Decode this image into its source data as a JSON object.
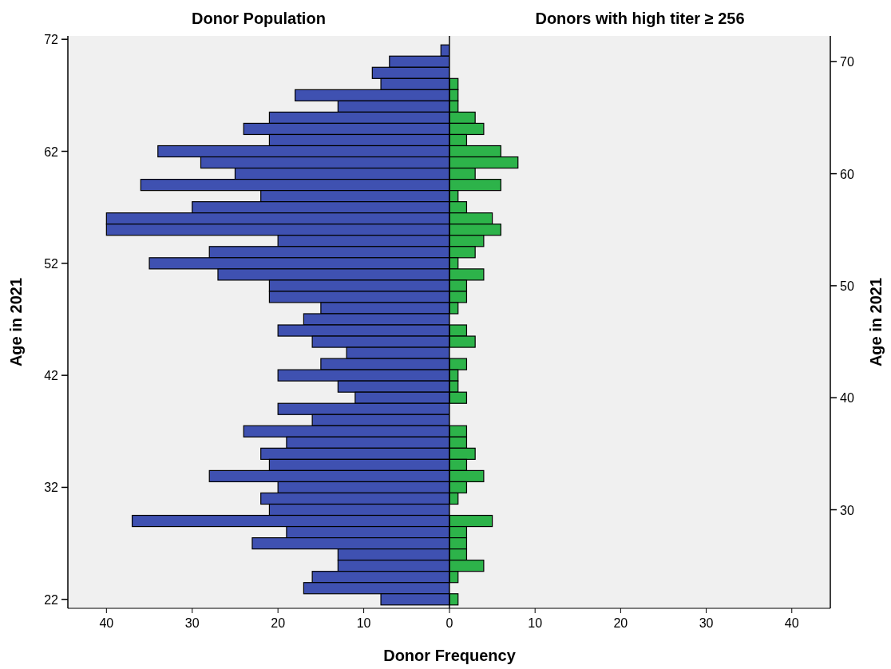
{
  "chart_data": [
    {
      "type": "bar",
      "orientation": "horizontal",
      "title": "Donor Population",
      "xlabel": "Donor Frequency",
      "ylabel": "Age in 2021",
      "x": [
        71,
        70,
        69,
        68,
        67,
        66,
        65,
        64,
        63,
        62,
        61,
        60,
        59,
        58,
        57,
        56,
        55,
        54,
        53,
        52,
        51,
        50,
        49,
        48,
        47,
        46,
        45,
        44,
        43,
        42,
        41,
        40,
        39,
        38,
        37,
        36,
        35,
        34,
        33,
        32,
        31,
        30,
        29,
        28,
        27,
        26,
        25,
        24,
        23,
        22
      ],
      "series": [
        {
          "color": "#3f51b1",
          "values": [
            1,
            7,
            9,
            8,
            18,
            13,
            21,
            24,
            21,
            34,
            29,
            25,
            36,
            22,
            30,
            40,
            40,
            20,
            28,
            35,
            27,
            21,
            21,
            15,
            17,
            20,
            16,
            12,
            15,
            20,
            13,
            11,
            20,
            16,
            24,
            19,
            22,
            21,
            28,
            20,
            22,
            21,
            37,
            19,
            23,
            13,
            13,
            16,
            17,
            8
          ]
        }
      ],
      "xlim": [
        44.5,
        0
      ],
      "xticks": [
        40,
        30,
        20,
        10,
        0
      ],
      "ylim": [
        21.2,
        72.3
      ],
      "yticks": [
        22,
        32,
        42,
        52,
        62,
        72
      ]
    },
    {
      "type": "bar",
      "orientation": "horizontal",
      "title": "Donors with high titer ≥ 256",
      "ylabel": "Age in 2021",
      "x": [
        71,
        70,
        69,
        68,
        67,
        66,
        65,
        64,
        63,
        62,
        61,
        60,
        59,
        58,
        57,
        56,
        55,
        54,
        53,
        52,
        51,
        50,
        49,
        48,
        47,
        46,
        45,
        44,
        43,
        42,
        41,
        40,
        39,
        38,
        37,
        36,
        35,
        34,
        33,
        32,
        31,
        30,
        29,
        28,
        27,
        26,
        25,
        24,
        23,
        22
      ],
      "series": [
        {
          "color": "#2db34a",
          "values": [
            0,
            0,
            0,
            1,
            1,
            1,
            3,
            4,
            2,
            6,
            8,
            3,
            6,
            1,
            2,
            5,
            6,
            4,
            3,
            1,
            4,
            2,
            2,
            1,
            0,
            2,
            3,
            0,
            2,
            1,
            1,
            2,
            0,
            0,
            2,
            2,
            3,
            2,
            4,
            2,
            1,
            0,
            5,
            2,
            2,
            2,
            4,
            1,
            0,
            1
          ]
        }
      ],
      "xlim": [
        0,
        44.5
      ],
      "xticks": [
        10,
        20,
        30,
        40
      ],
      "ylim": [
        21.2,
        72.3
      ],
      "yticks": [
        30,
        40,
        50,
        60,
        70
      ]
    }
  ]
}
